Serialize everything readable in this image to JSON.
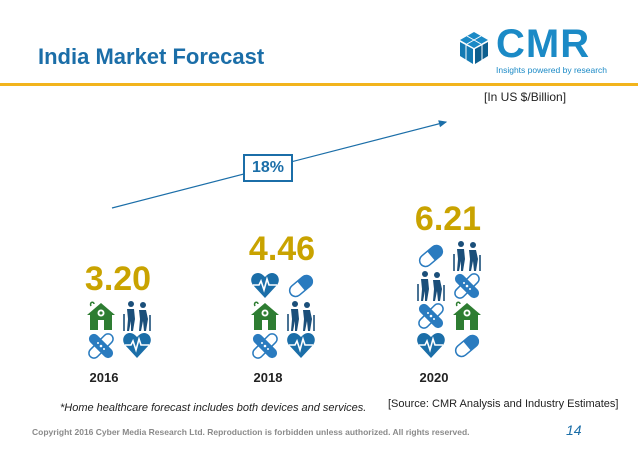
{
  "title": "India Market Forecast",
  "logo": {
    "text": "CMR",
    "tagline": "Insights powered by research"
  },
  "unit_label": "[In US $/Billion]",
  "growth_label": "18%",
  "chart_data": {
    "type": "bar",
    "title": "India Market Forecast",
    "categories": [
      "2016",
      "2018",
      "2020"
    ],
    "values": [
      3.2,
      4.46,
      6.21
    ],
    "value_labels": [
      "3.20",
      "4.46",
      "6.21"
    ],
    "ylabel": "US $/Billion",
    "annotations": [
      "18%"
    ]
  },
  "footnote": "*Home healthcare forecast includes both devices and services.",
  "source": "[Source: CMR Analysis and Industry Estimates]",
  "copyright": "Copyright 2016 Cyber Media Research Ltd. Reproduction is forbidden unless authorized. All rights reserved.",
  "page_number": "14",
  "colors": {
    "accent": "#1b6ea8",
    "value_gold": "#c9a300",
    "heart_blue": "#1b6ea8",
    "house_green": "#2e7d32",
    "elder_blue": "#1b4f7a",
    "pill_blue": "#2a7bbf",
    "bandage_blue": "#2a7bbf"
  },
  "icon_columns": [
    [
      "house-icon",
      "elderly-icon",
      "bandage-icon",
      "heart-icon"
    ],
    [
      "heart-icon",
      "pill-icon",
      "house-icon",
      "elderly-icon",
      "bandage-icon",
      "heart-icon"
    ],
    [
      "pill-icon",
      "elderly-icon",
      "elderly-icon",
      "bandage-icon",
      "bandage-icon",
      "house-icon",
      "heart-icon",
      "pill-icon"
    ]
  ]
}
